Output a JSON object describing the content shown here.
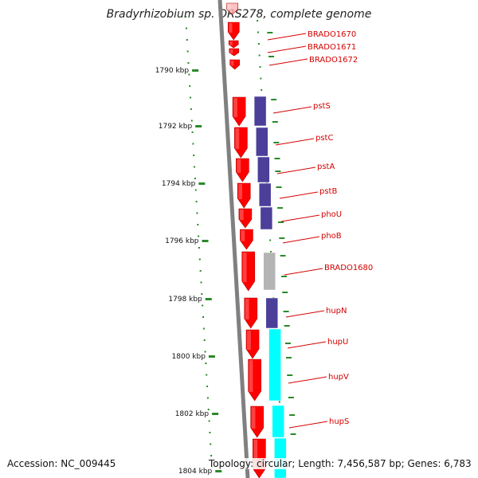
{
  "title": "Bradyrhizobium sp. ORS278, complete genome",
  "accession": "Accession: NC_009445",
  "summary": "Topology: circular; Length: 7,456,587 bp; Genes: 6,783",
  "colors": {
    "backbone": "#808080",
    "forward_gene": "#ff0000",
    "cog_purple": "#4b3f9a",
    "cog_gray": "#b4b4b4",
    "cog_cyan": "#00ffff",
    "label": "#d40000",
    "tick": "#2a8a2a"
  },
  "kbp_ticks": [
    "1790 kbp",
    "1792 kbp",
    "1794 kbp",
    "1796 kbp",
    "1798 kbp",
    "1800 kbp",
    "1802 kbp",
    "1804 kbp"
  ],
  "gene_labels": [
    "BRADO1670",
    "BRADO1671",
    "BRADO1672",
    "pstS",
    "pstC",
    "pstA",
    "pstB",
    "phoU",
    "phoB",
    "BRADO1680",
    "hupN",
    "hupU",
    "hupV",
    "hupS"
  ]
}
